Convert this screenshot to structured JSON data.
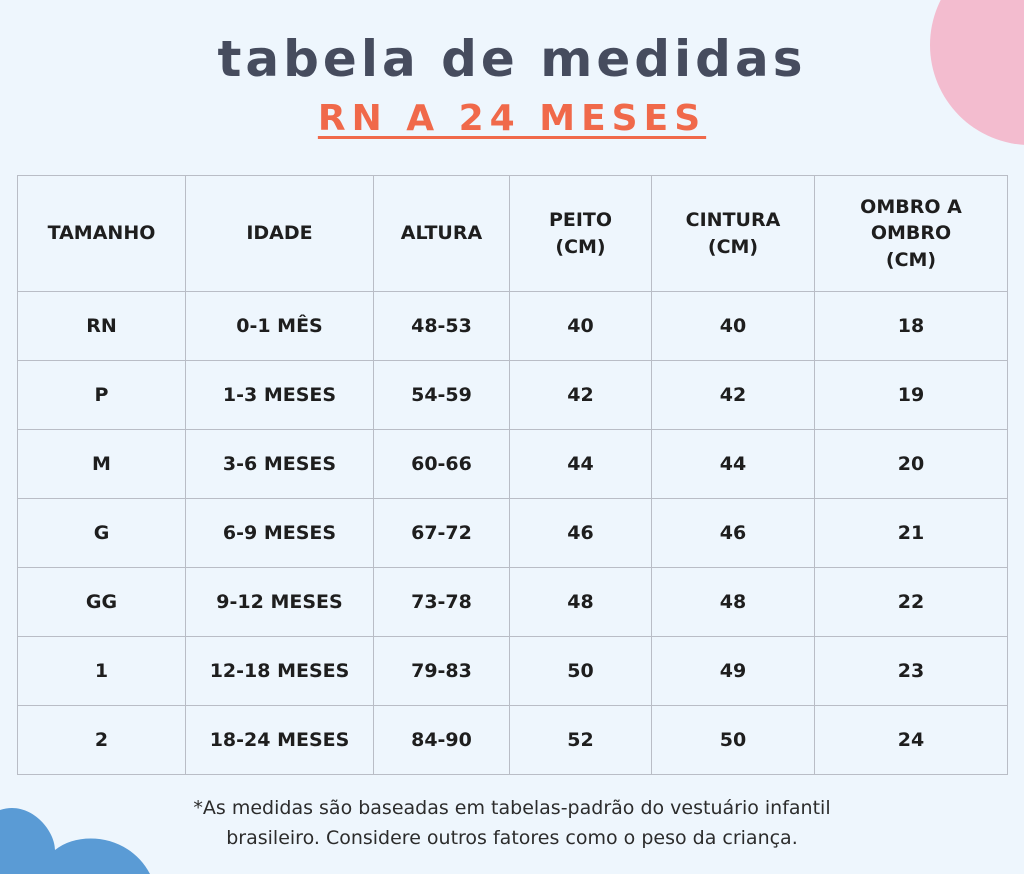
{
  "header": {
    "title": "tabela de medidas",
    "subtitle": "RN A 24 MESES"
  },
  "table": {
    "headers": [
      [
        "TAMANHO"
      ],
      [
        "IDADE"
      ],
      [
        "ALTURA"
      ],
      [
        "PEITO",
        "(CM)"
      ],
      [
        "CINTURA",
        "(CM)"
      ],
      [
        "OMBRO A",
        "OMBRO",
        "(CM)"
      ]
    ],
    "rows": [
      [
        "RN",
        "0-1 MÊS",
        "48-53",
        "40",
        "40",
        "18"
      ],
      [
        "P",
        "1-3 MESES",
        "54-59",
        "42",
        "42",
        "19"
      ],
      [
        "M",
        "3-6 MESES",
        "60-66",
        "44",
        "44",
        "20"
      ],
      [
        "G",
        "6-9 MESES",
        "67-72",
        "46",
        "46",
        "21"
      ],
      [
        "GG",
        "9-12 MESES",
        "73-78",
        "48",
        "48",
        "22"
      ],
      [
        "1",
        "12-18 MESES",
        "79-83",
        "50",
        "49",
        "23"
      ],
      [
        "2",
        "18-24 MESES",
        "84-90",
        "52",
        "50",
        "24"
      ]
    ]
  },
  "footnote": [
    "*As medidas são baseadas em tabelas-padrão do vestuário infantil",
    "brasileiro. Considere outros fatores como o peso da criança."
  ]
}
